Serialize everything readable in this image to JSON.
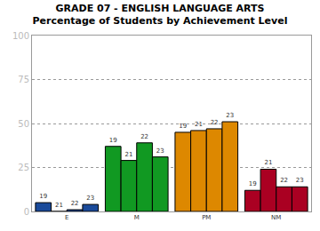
{
  "chart_data": {
    "type": "bar",
    "title": "GRADE 07 - ENGLISH LANGUAGE ARTS",
    "subtitle": "Percentage of Students by Achievement Level",
    "categories": [
      "E",
      "M",
      "PM",
      "NM"
    ],
    "series": [
      {
        "name": "19",
        "values": [
          5,
          37,
          45,
          12
        ],
        "colors": [
          "#1a4a9a",
          "#119922",
          "#dd8800",
          "#aa0022"
        ]
      },
      {
        "name": "21",
        "values": [
          0,
          29,
          46,
          24
        ],
        "colors": [
          "#1a4a9a",
          "#119922",
          "#dd8800",
          "#aa0022"
        ]
      },
      {
        "name": "22",
        "values": [
          1,
          39,
          47,
          14
        ],
        "colors": [
          "#1a4a9a",
          "#119922",
          "#dd8800",
          "#aa0022"
        ]
      },
      {
        "name": "23",
        "values": [
          4,
          31,
          51,
          14
        ],
        "colors": [
          "#1a4a9a",
          "#119922",
          "#dd8800",
          "#aa0022"
        ]
      }
    ],
    "ylim": [
      0,
      100
    ],
    "yticks": [
      0,
      25,
      50,
      75,
      100
    ],
    "grid": true
  }
}
